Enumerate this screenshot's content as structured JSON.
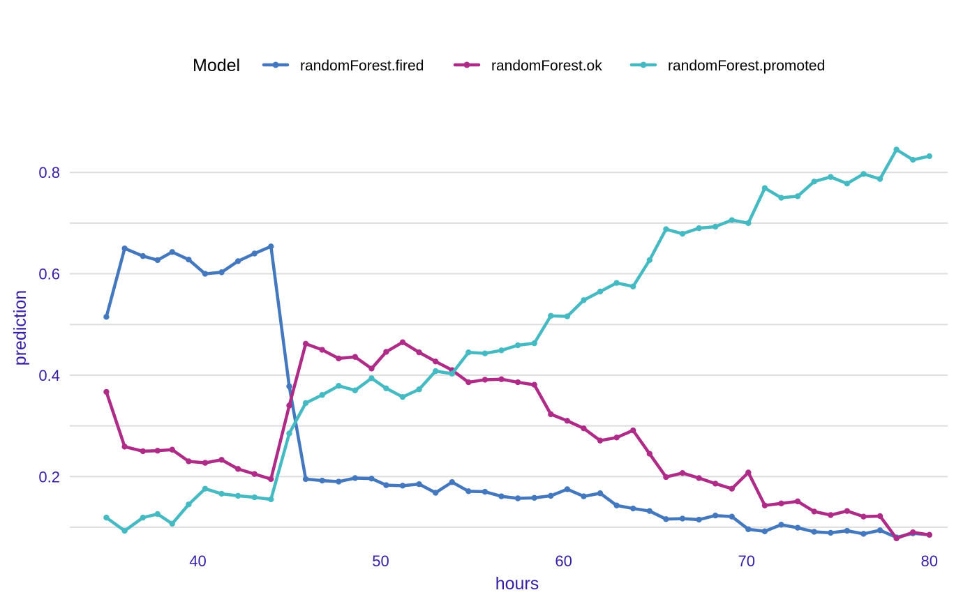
{
  "chart_data": {
    "type": "line",
    "xlabel": "hours",
    "ylabel": "prediction",
    "xlim": [
      33,
      81
    ],
    "ylim": [
      0.06,
      0.92
    ],
    "xticks": [
      40,
      50,
      60,
      70,
      80
    ],
    "xtick_labels": [
      "40",
      "50",
      "60",
      "70",
      "80"
    ],
    "yticks": [
      0.2,
      0.4,
      0.6,
      0.8
    ],
    "ytick_labels": [
      "0.2",
      "0.4",
      "0.6",
      "0.8"
    ],
    "minor_yticks": [
      0.1,
      0.3,
      0.5,
      0.7
    ],
    "grid": true,
    "legend": {
      "title": "Model",
      "position": "top"
    },
    "x": [
      35,
      36,
      37,
      37.8,
      38.6,
      39.5,
      40.4,
      41.3,
      42.2,
      43.1,
      44,
      45,
      45.9,
      46.8,
      47.7,
      48.6,
      49.5,
      50.3,
      51.2,
      52.1,
      53,
      53.9,
      54.8,
      55.7,
      56.6,
      57.5,
      58.4,
      59.3,
      60.2,
      61.1,
      62,
      62.9,
      63.8,
      64.7,
      65.6,
      66.5,
      67.4,
      68.3,
      69.2,
      70.1,
      71,
      71.9,
      72.8,
      73.7,
      74.6,
      75.5,
      76.4,
      77.3,
      78.2,
      79.1,
      80
    ],
    "series": [
      {
        "name": "randomForest.fired",
        "color": "#4378bf",
        "values": [
          0.515,
          0.65,
          0.635,
          0.627,
          0.643,
          0.628,
          0.6,
          0.603,
          0.625,
          0.64,
          0.654,
          0.378,
          0.195,
          0.192,
          0.19,
          0.197,
          0.196,
          0.183,
          0.182,
          0.185,
          0.168,
          0.189,
          0.171,
          0.17,
          0.161,
          0.157,
          0.158,
          0.162,
          0.175,
          0.161,
          0.167,
          0.143,
          0.137,
          0.132,
          0.116,
          0.117,
          0.115,
          0.123,
          0.121,
          0.096,
          0.092,
          0.105,
          0.099,
          0.091,
          0.089,
          0.093,
          0.087,
          0.094,
          0.08,
          0.088,
          0.085
        ]
      },
      {
        "name": "randomForest.ok",
        "color": "#ae2c87",
        "values": [
          0.367,
          0.259,
          0.25,
          0.251,
          0.253,
          0.23,
          0.227,
          0.233,
          0.215,
          0.205,
          0.195,
          0.34,
          0.462,
          0.45,
          0.433,
          0.436,
          0.413,
          0.446,
          0.465,
          0.445,
          0.427,
          0.41,
          0.386,
          0.391,
          0.392,
          0.386,
          0.381,
          0.323,
          0.31,
          0.295,
          0.271,
          0.277,
          0.291,
          0.245,
          0.199,
          0.207,
          0.197,
          0.186,
          0.176,
          0.208,
          0.143,
          0.147,
          0.151,
          0.131,
          0.124,
          0.132,
          0.121,
          0.122,
          0.078,
          0.09,
          0.085
        ]
      },
      {
        "name": "randomForest.promoted",
        "color": "#46bac2",
        "values": [
          0.119,
          0.093,
          0.119,
          0.126,
          0.107,
          0.145,
          0.176,
          0.166,
          0.162,
          0.159,
          0.155,
          0.285,
          0.345,
          0.361,
          0.379,
          0.37,
          0.394,
          0.374,
          0.357,
          0.372,
          0.408,
          0.403,
          0.445,
          0.443,
          0.449,
          0.459,
          0.463,
          0.517,
          0.516,
          0.548,
          0.565,
          0.582,
          0.575,
          0.627,
          0.688,
          0.679,
          0.69,
          0.693,
          0.706,
          0.7,
          0.769,
          0.75,
          0.753,
          0.782,
          0.791,
          0.778,
          0.797,
          0.787,
          0.845,
          0.825,
          0.832
        ]
      }
    ]
  }
}
